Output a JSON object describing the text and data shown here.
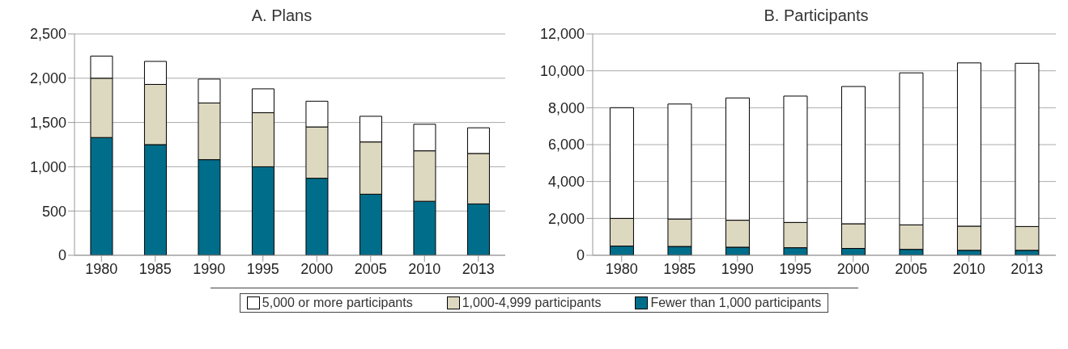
{
  "chart_data": [
    {
      "type": "bar",
      "title": "A. Plans",
      "stacked": true,
      "categories": [
        "1980",
        "1985",
        "1990",
        "1995",
        "2000",
        "2005",
        "2010",
        "2013"
      ],
      "series": [
        {
          "name": "Fewer than 1,000 participants",
          "color": "#006e8a",
          "values": [
            1330,
            1250,
            1080,
            1000,
            870,
            690,
            610,
            580
          ]
        },
        {
          "name": "1,000-4,999 participants",
          "color": "#ddd8c0",
          "values": [
            670,
            680,
            640,
            610,
            580,
            590,
            570,
            570
          ]
        },
        {
          "name": "5,000 or more participants",
          "color": "#ffffff",
          "values": [
            250,
            260,
            270,
            270,
            290,
            290,
            300,
            290
          ]
        }
      ],
      "ylim": [
        0,
        2500
      ],
      "yticks": [
        0,
        {
          "value": 500,
          "label": "500"
        },
        {
          "value": 1000,
          "label": "1,000"
        },
        {
          "value": 1500,
          "label": "1,500"
        },
        {
          "value": 2000,
          "label": "2,000"
        },
        {
          "value": 2500,
          "label": "2,500"
        }
      ],
      "grid": "y",
      "legend": "bottom"
    },
    {
      "type": "bar",
      "title": "B. Participants",
      "stacked": true,
      "categories": [
        "1980",
        "1985",
        "1990",
        "1995",
        "2000",
        "2005",
        "2010",
        "2013"
      ],
      "series": [
        {
          "color": "#006e8a",
          "values": [
            500,
            480,
            440,
            410,
            370,
            320,
            270,
            270
          ]
        },
        {
          "color": "#ddd8c0",
          "values": [
            1500,
            1490,
            1460,
            1370,
            1340,
            1330,
            1310,
            1290
          ]
        },
        {
          "color": "#ffffff",
          "values": [
            6000,
            6230,
            6630,
            6850,
            7440,
            8240,
            8850,
            8850
          ]
        }
      ],
      "ylim": [
        0,
        12000
      ],
      "yticks": [
        0,
        {
          "value": 2000,
          "label": "2,000"
        },
        {
          "value": 4000,
          "label": "4,000"
        },
        {
          "value": 6000,
          "label": "6,000"
        },
        {
          "value": 8000,
          "label": "8,000"
        },
        {
          "value": 10000,
          "label": "10,000"
        },
        {
          "value": 12000,
          "label": "12,000"
        }
      ],
      "grid": "y"
    }
  ]
}
